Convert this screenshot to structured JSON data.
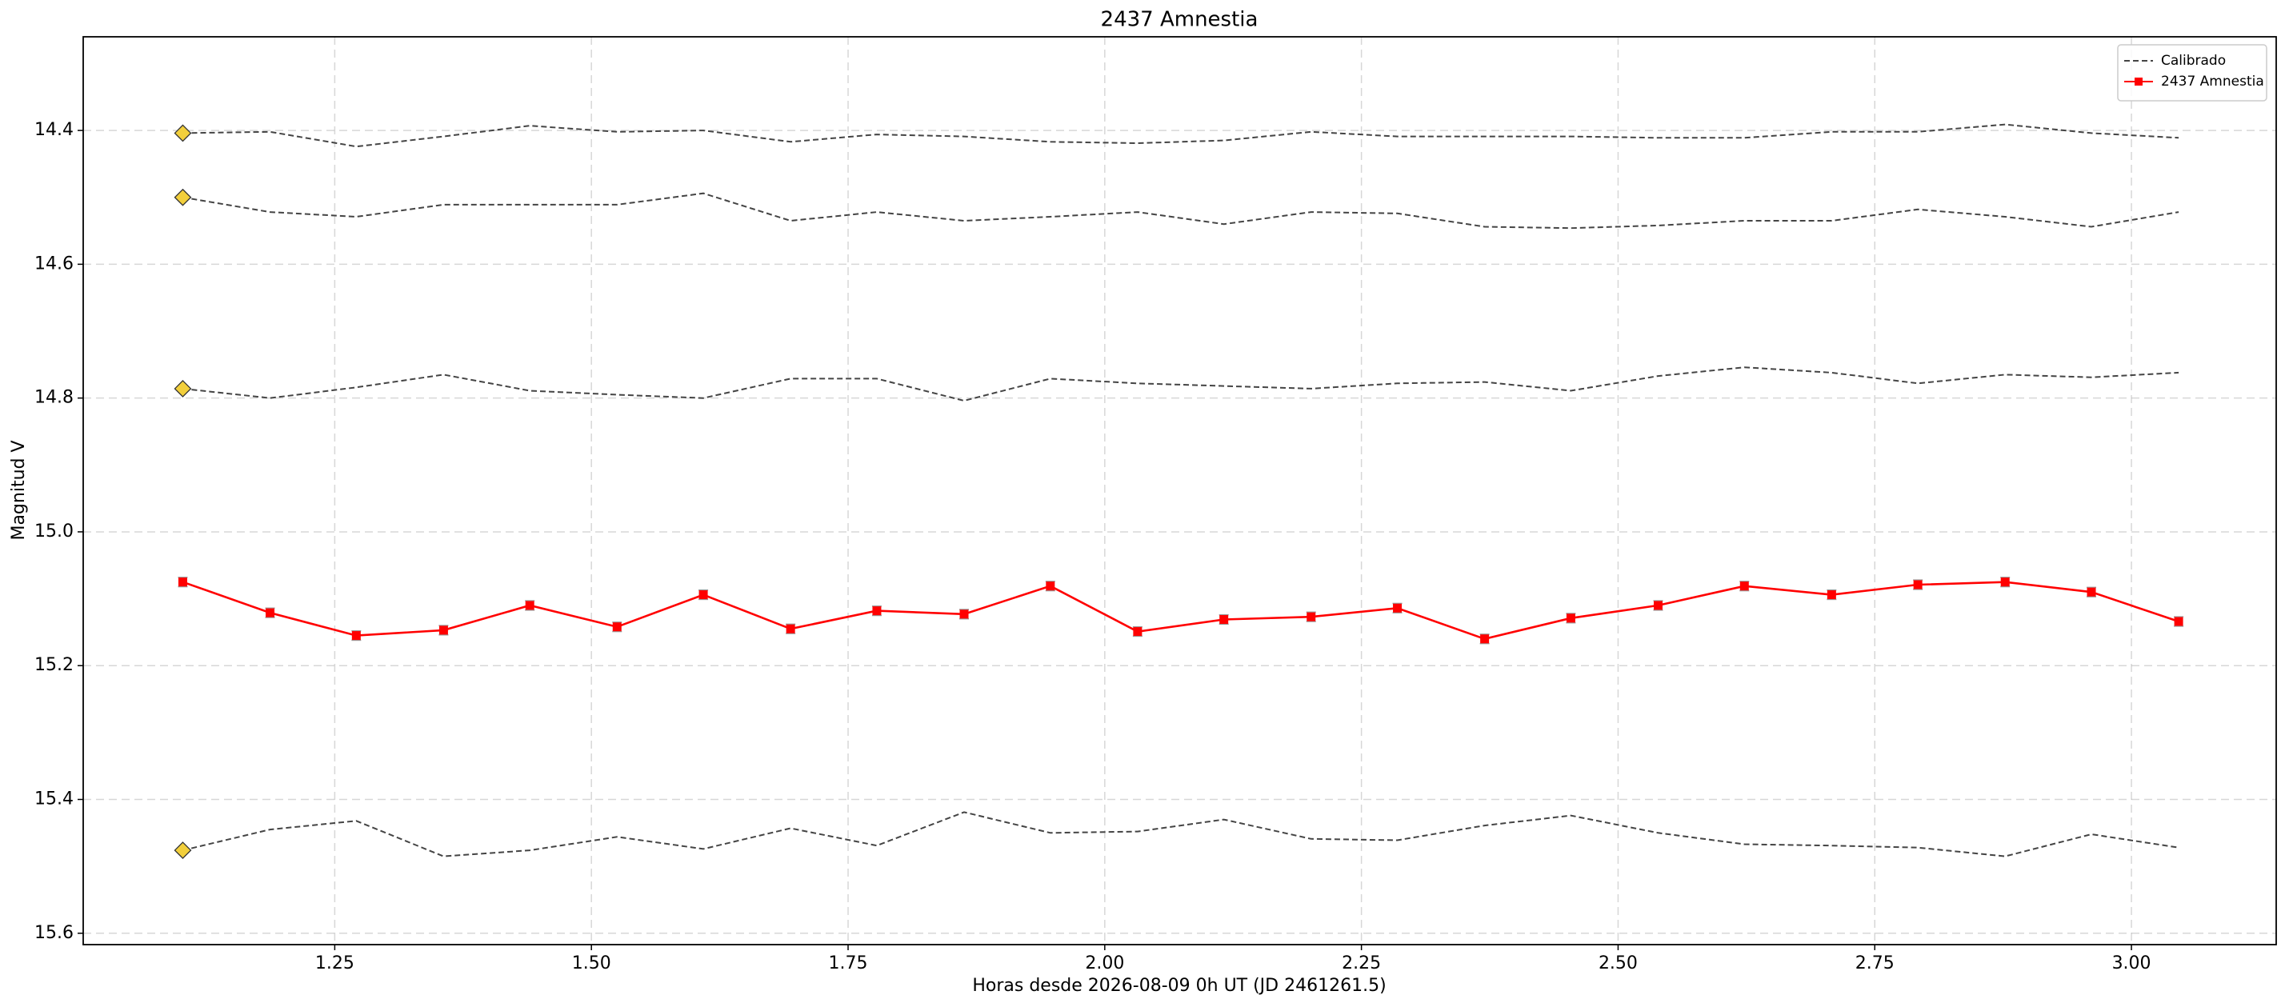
{
  "chart_data": {
    "type": "line",
    "title": "2437 Amnestia",
    "xlabel": "Horas desde 2026-08-09 0h UT (JD 2461261.5)",
    "ylabel": "Magnitud V",
    "x": [
      1.102,
      1.187,
      1.271,
      1.356,
      1.44,
      1.525,
      1.609,
      1.694,
      1.778,
      1.863,
      1.947,
      2.032,
      2.116,
      2.201,
      2.285,
      2.37,
      2.454,
      2.539,
      2.623,
      2.708,
      2.792,
      2.877,
      2.961,
      3.046
    ],
    "series": [
      {
        "name": "Calibrado",
        "color": "#444444",
        "dashed": true,
        "first_marker_color": "#f2cf3c",
        "values": [
          14.404,
          14.402,
          14.424,
          14.409,
          14.393,
          14.402,
          14.4,
          14.417,
          14.406,
          14.409,
          14.417,
          14.419,
          14.415,
          14.402,
          14.409,
          14.409,
          14.409,
          14.411,
          14.411,
          14.402,
          14.402,
          14.391,
          14.404,
          14.411
        ]
      },
      {
        "color": "#444444",
        "dashed": true,
        "first_marker_color": "#f2cf3c",
        "values": [
          14.5,
          14.522,
          14.529,
          14.511,
          14.511,
          14.511,
          14.494,
          14.535,
          14.522,
          14.535,
          14.529,
          14.522,
          14.54,
          14.522,
          14.524,
          14.544,
          14.546,
          14.542,
          14.535,
          14.535,
          14.518,
          14.529,
          14.544,
          14.522
        ]
      },
      {
        "color": "#444444",
        "dashed": true,
        "first_marker_color": "#f2cf3c",
        "values": [
          14.786,
          14.8,
          14.784,
          14.765,
          14.789,
          14.795,
          14.8,
          14.771,
          14.771,
          14.804,
          14.771,
          14.778,
          14.782,
          14.786,
          14.778,
          14.776,
          14.789,
          14.767,
          14.754,
          14.762,
          14.778,
          14.765,
          14.769,
          14.762
        ]
      },
      {
        "color": "#444444",
        "dashed": true,
        "first_marker_color": "#f2cf3c",
        "values": [
          15.476,
          15.445,
          15.432,
          15.485,
          15.476,
          15.456,
          15.474,
          15.443,
          15.469,
          15.419,
          15.45,
          15.448,
          15.43,
          15.459,
          15.461,
          15.439,
          15.424,
          15.45,
          15.467,
          15.469,
          15.472,
          15.485,
          15.452,
          15.472
        ]
      },
      {
        "name": "2437 Amnestia",
        "color": "#ff0000",
        "dashed": false,
        "marker": "square",
        "values": [
          15.075,
          15.121,
          15.155,
          15.147,
          15.11,
          15.142,
          15.094,
          15.145,
          15.118,
          15.123,
          15.081,
          15.149,
          15.131,
          15.127,
          15.114,
          15.16,
          15.129,
          15.11,
          15.081,
          15.094,
          15.079,
          15.075,
          15.09,
          15.134
        ],
        "errors": [
          0.007,
          0.007,
          0.007,
          0.007,
          0.007,
          0.007,
          0.007,
          0.007,
          0.007,
          0.007,
          0.007,
          0.007,
          0.007,
          0.007,
          0.007,
          0.007,
          0.007,
          0.007,
          0.007,
          0.007,
          0.007,
          0.007,
          0.007,
          0.007
        ]
      }
    ],
    "xlim": [
      1.005,
      3.141
    ],
    "xticks": [
      1.25,
      {
        "value": 1.5,
        "label": "1.50"
      },
      1.75,
      {
        "value": 2,
        "label": "2.00"
      },
      2.25,
      {
        "value": 2.5,
        "label": "2.50"
      },
      2.75,
      {
        "value": 3,
        "label": "3.00"
      }
    ],
    "ylim": [
      14.26,
      15.617
    ],
    "y_inverted": true,
    "yticks": [
      14.4,
      14.6,
      14.8,
      {
        "value": 15,
        "label": "15.0"
      },
      15.2,
      15.4,
      15.6
    ],
    "grid": true,
    "legend": "upper right"
  }
}
